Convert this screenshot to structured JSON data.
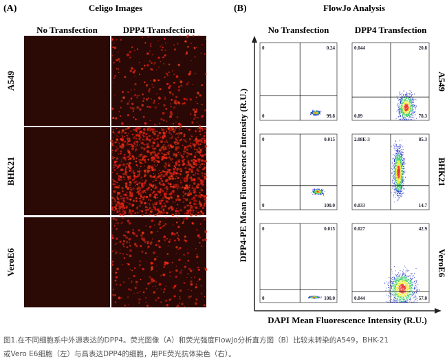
{
  "panel_a": {
    "label": "(A)",
    "title": "Celigo Images",
    "columns": [
      "No Transfection",
      "DPP4 Transfection"
    ],
    "rows": [
      "A549",
      "BHK21",
      "VeroE6"
    ]
  },
  "panel_b": {
    "label": "(B)",
    "title": "FlowJo Analysis",
    "columns": [
      "No Transfection",
      "DPP4 Transfection"
    ],
    "rows": [
      "A549",
      "BHK21",
      "VeroE6"
    ],
    "y_axis": "DPP4-PE Mean Fluorescence Intensity (R.U.)",
    "x_axis": "DAPI Mean Fluorescence Intensity (R.U.)",
    "plots": [
      [
        {
          "ul": "0",
          "ur": "0.24",
          "ll": "0",
          "lr": "99.8"
        },
        {
          "ul": "0.044",
          "ur": "20.8",
          "ll": "0.89",
          "lr": "78.3"
        }
      ],
      [
        {
          "ul": "0",
          "ur": "0.015",
          "ll": "0",
          "lr": "100.0"
        },
        {
          "ul": "2.08E-3",
          "ur": "85.3",
          "ll": "0.033",
          "lr": "14.7"
        }
      ],
      [
        {
          "ul": "0",
          "ur": "0.015",
          "ll": "0",
          "lr": "100.0"
        },
        {
          "ul": "0.027",
          "ur": "42.9",
          "ll": "0.044",
          "lr": "57.0"
        }
      ]
    ]
  },
  "caption": [
    "图1.在不同细胞系中外源表达的DPP4。荧光图像（A）和荧光强度FlowJo分析直方图（B）比较未转染的A549，BHK-21",
    "或Vero E6细胞（左）与高表达DPP4的细胞，用PE荧光抗体染色（右）。"
  ]
}
